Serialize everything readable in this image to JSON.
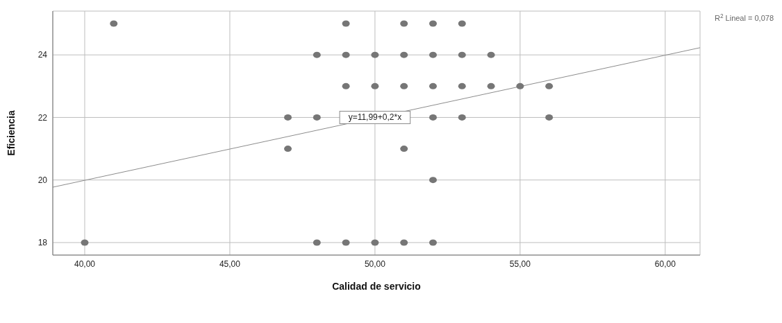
{
  "chart_data": {
    "type": "scatter",
    "xlabel": "Calidad de servicio",
    "ylabel": "Eficiencia",
    "xlim": [
      38.9,
      61.2
    ],
    "ylim": [
      17.6,
      25.4
    ],
    "xticks": [
      {
        "value": 40,
        "label": "40,00"
      },
      {
        "value": 45,
        "label": "45,00"
      },
      {
        "value": 50,
        "label": "50,00"
      },
      {
        "value": 55,
        "label": "55,00"
      },
      {
        "value": 60,
        "label": "60,00"
      }
    ],
    "yticks": [
      18,
      20,
      22,
      24
    ],
    "grid": true,
    "series": [
      {
        "marker": "circle",
        "color": "#767676",
        "x": [
          41,
          49,
          51,
          52,
          53,
          48,
          49,
          50,
          51,
          52,
          53,
          54,
          49,
          50,
          51,
          52,
          53,
          54,
          55,
          56,
          47,
          48,
          52,
          53,
          56,
          47,
          51,
          52,
          40,
          48,
          49,
          50,
          51,
          52
        ],
        "values": [
          25,
          25,
          25,
          25,
          25,
          24,
          24,
          24,
          24,
          24,
          24,
          24,
          23,
          23,
          23,
          23,
          23,
          23,
          23,
          23,
          22,
          22,
          22,
          22,
          22,
          21,
          21,
          20,
          18,
          18,
          18,
          18,
          18,
          18
        ]
      },
      {
        "type": "line",
        "marker": "none",
        "color": "#8c8c8c",
        "x": [
          38.9,
          61.2
        ],
        "values": [
          19.77,
          24.23
        ]
      }
    ],
    "annotations": [
      {
        "text": "y=11,99+0,2*x",
        "x": 50,
        "y": 22
      },
      "R$^{2}$ Lineal = 0,078"
    ]
  }
}
